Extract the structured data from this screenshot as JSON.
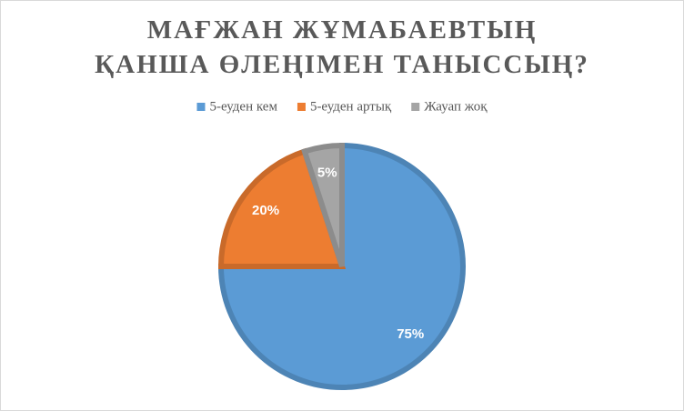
{
  "chart_data": {
    "type": "pie",
    "title": "МАҒЖАН ЖҰМАБАЕВТЫҢ ҚАНША ӨЛЕҢІМЕН ТАНЫССЫҢ?",
    "categories": [
      "5-еуден кем",
      "5-еуден артық",
      "Жауап жоқ"
    ],
    "values": [
      75,
      20,
      5
    ],
    "value_labels": [
      "75%",
      "20%",
      "5%"
    ],
    "colors": [
      "#5b9bd5",
      "#ed7d31",
      "#a5a5a5"
    ],
    "legend": "top"
  }
}
